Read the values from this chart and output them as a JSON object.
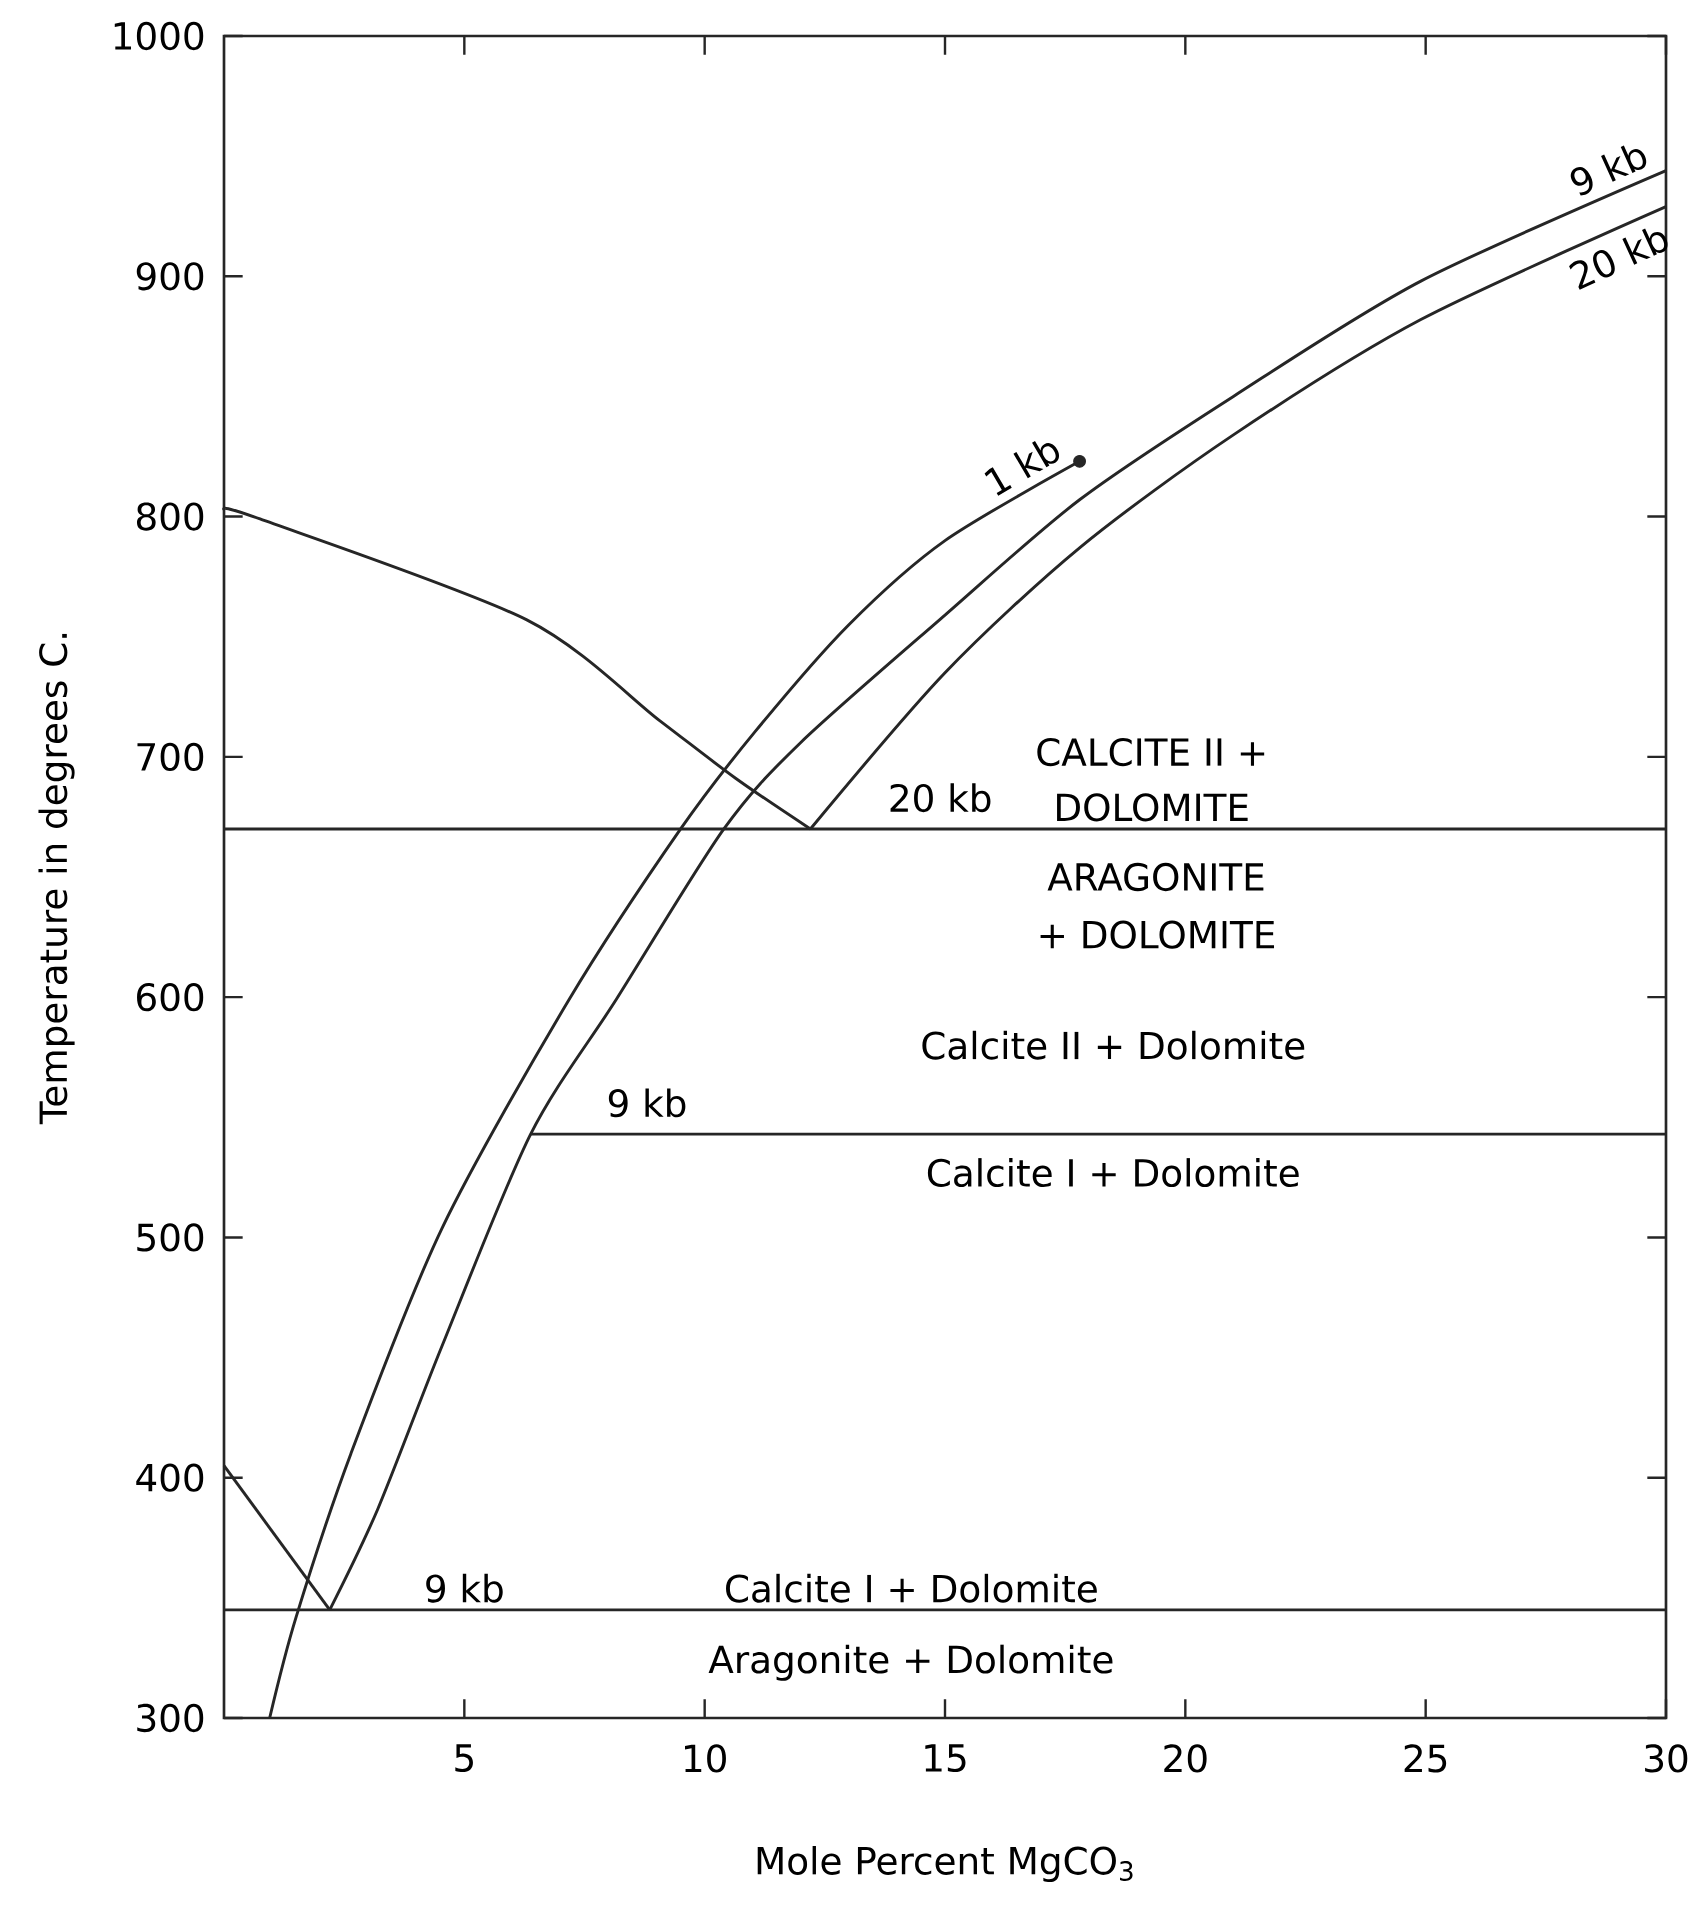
{
  "chart_data": {
    "type": "line",
    "xlabel": "Mole Percent MgCO$_{3}$",
    "ylabel": "Temperature in degrees C.",
    "xlim": [
      0,
      30
    ],
    "ylim": [
      300,
      1000
    ],
    "xticks": [
      5,
      10,
      15,
      20,
      25,
      30
    ],
    "yticks": [
      300,
      400,
      500,
      600,
      700,
      800,
      900,
      1000
    ],
    "grid": false,
    "series": [
      {
        "name": "1 kb",
        "color": "#262626",
        "x": [
          0.95,
          1.5,
          2.64,
          4.54,
          7.18,
          9.5,
          11.07,
          13,
          15,
          17.8
        ],
        "values": [
          300,
          342,
          410,
          504,
          599,
          670,
          711,
          755,
          790,
          823
        ]
      },
      {
        "name": "9 kb",
        "color": "#262626",
        "x": [
          2.2,
          3.2,
          4.54,
          6.38,
          8.16,
          10.4,
          12,
          15,
          17.8,
          21,
          24.9,
          30
        ],
        "values": [
          345,
          387,
          455,
          543,
          599,
          670,
          706,
          759,
          807,
          850,
          898,
          944
        ]
      },
      {
        "name": "20 kb",
        "color": "#262626",
        "x": [
          12.2,
          15,
          17.8,
          21,
          24.9,
          30
        ],
        "values": [
          670,
          735,
          787,
          834,
          882,
          929
        ]
      },
      {
        "color": "#262626",
        "x": [
          0,
          0.75,
          6.3,
          9.07,
          10.65,
          12.2
        ],
        "values": [
          803,
          799,
          757,
          715,
          691,
          670
        ]
      },
      {
        "color": "#262626",
        "x": [
          0,
          2.2
        ],
        "values": [
          405,
          345
        ]
      },
      {
        "color": "#262626",
        "x": [
          6.38,
          30
        ],
        "values": [
          543,
          543
        ]
      },
      {
        "type": "scatter",
        "marker": "circle",
        "color": "#262626",
        "x": [
          17.8
        ],
        "values": [
          823
        ]
      }
    ],
    "ref_lines": [
      {
        "axis": "y",
        "value": 670,
        "color": "#262626"
      },
      {
        "axis": "y",
        "value": 345,
        "color": "#262626"
      }
    ],
    "annotations": [
      "20 kb",
      "9 kb",
      "9 kb",
      "CALCITE II +",
      "DOLOMITE",
      "ARAGONITE",
      "+ DOLOMITE",
      "Calcite II + Dolomite",
      "Calcite I + Dolomite",
      "Calcite I + Dolomite",
      "Aragonite + Dolomite"
    ]
  }
}
